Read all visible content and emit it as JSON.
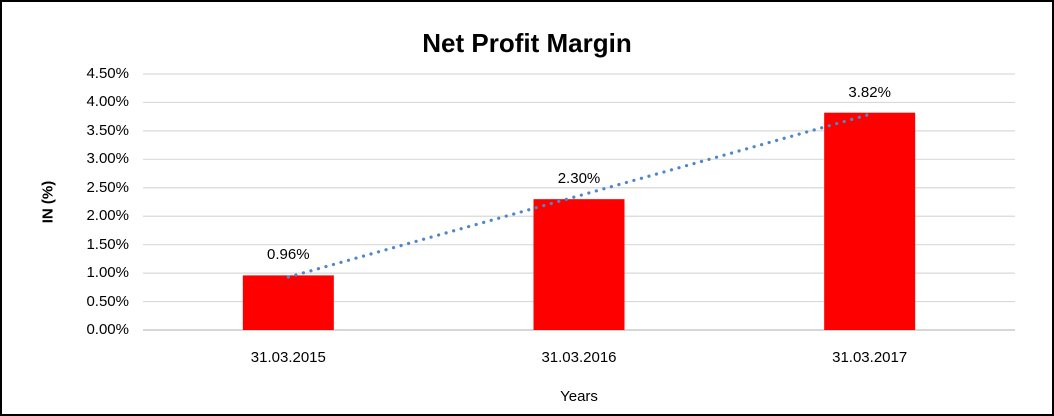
{
  "chart_data": {
    "type": "bar",
    "title": "Net Profit Margin",
    "xlabel": "Years",
    "ylabel": "IN (%)",
    "categories": [
      "31.03.2015",
      "31.03.2016",
      "31.03.2017"
    ],
    "values": [
      0.96,
      2.3,
      3.82
    ],
    "data_labels": [
      "0.96%",
      "2.30%",
      "3.82%"
    ],
    "ylim": [
      0,
      4.5
    ],
    "ytick_step": 0.5,
    "ytick_labels": [
      "0.00%",
      "0.50%",
      "1.00%",
      "1.50%",
      "2.00%",
      "2.50%",
      "3.00%",
      "3.50%",
      "4.00%",
      "4.50%"
    ],
    "grid": true,
    "legend_position": "none",
    "trendline": {
      "type": "linear",
      "style": "dotted",
      "color": "#4F87C7"
    },
    "colors": {
      "bar": "#FF0000",
      "gridline": "#D9D9D9",
      "axis_line": "#BFBFBF",
      "text": "#000000",
      "frame_border": "#000000",
      "background": "#FFFFFF"
    }
  }
}
